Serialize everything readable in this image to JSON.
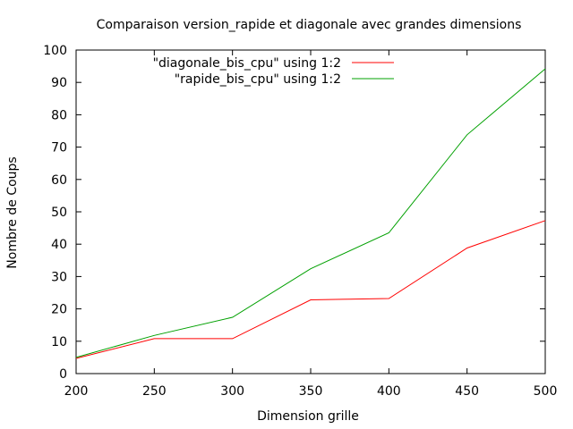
{
  "chart_data": {
    "type": "line",
    "title": "Comparaison version_rapide et diagonale avec grandes dimensions",
    "xlabel": "Dimension grille",
    "ylabel": "Nombre de Coups",
    "xlim": [
      200,
      500
    ],
    "ylim": [
      0,
      100
    ],
    "xticks": [
      "200",
      "250",
      "300",
      "350",
      "400",
      "450",
      "500"
    ],
    "yticks": [
      "0",
      "10",
      "20",
      "30",
      "40",
      "50",
      "60",
      "70",
      "80",
      "90",
      "100"
    ],
    "grid": false,
    "legend_position": "top-right",
    "series": [
      {
        "name": "\"diagonale_bis_cpu\" using 1:2",
        "color": "#ff0000",
        "x": [
          200,
          250,
          300,
          350,
          375,
          400,
          450,
          500
        ],
        "y": [
          4.7,
          10.8,
          10.8,
          22.8,
          23.0,
          23.2,
          38.8,
          47.3
        ]
      },
      {
        "name": "\"rapide_bis_cpu\" using 1:2",
        "color": "#00a000",
        "x": [
          200,
          250,
          300,
          350,
          400,
          450,
          500
        ],
        "y": [
          5.0,
          11.8,
          17.4,
          32.4,
          43.5,
          73.8,
          94.2
        ]
      }
    ]
  }
}
